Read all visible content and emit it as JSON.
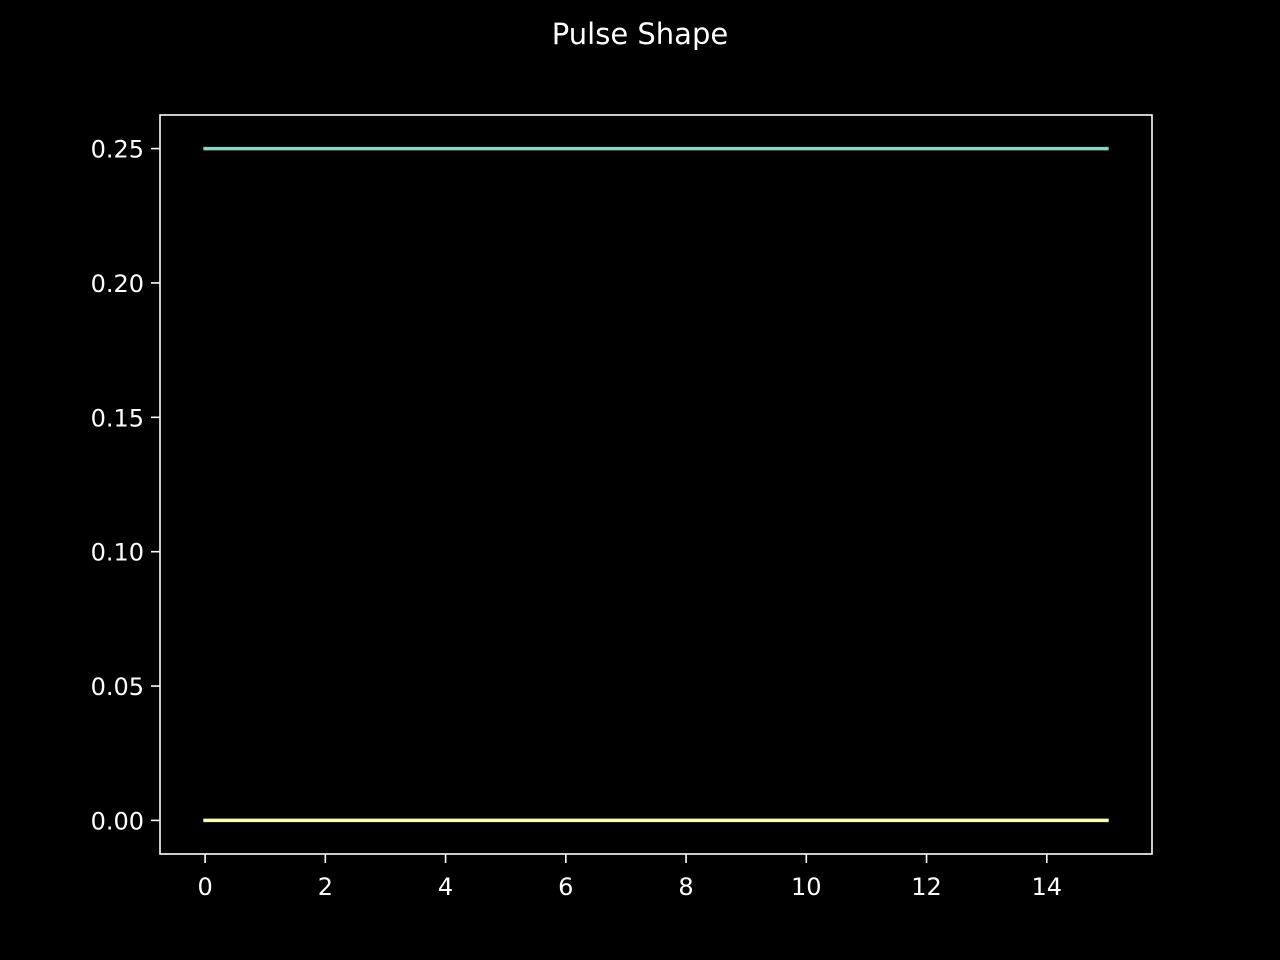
{
  "chart_data": {
    "type": "line",
    "title": "Pulse Shape",
    "xlabel": "",
    "ylabel": "",
    "xlim": [
      -0.75,
      15.75
    ],
    "ylim": [
      -0.0125,
      0.2625
    ],
    "x_ticks": [
      0,
      2,
      4,
      6,
      8,
      10,
      12,
      14
    ],
    "x_tick_labels": [
      "0",
      "2",
      "4",
      "6",
      "8",
      "10",
      "12",
      "14"
    ],
    "y_ticks": [
      0.0,
      0.05,
      0.1,
      0.15,
      0.2,
      0.25
    ],
    "y_tick_labels": [
      "0.00",
      "0.05",
      "0.10",
      "0.15",
      "0.20",
      "0.25"
    ],
    "grid": false,
    "legend": "none",
    "background": "#000000",
    "axis_color": "#ffffff",
    "series": [
      {
        "color": "#8dd3c7",
        "x": [
          0,
          1,
          2,
          3,
          4,
          5,
          6,
          7,
          8,
          9,
          10,
          11,
          12,
          13,
          14,
          15
        ],
        "values": [
          0.25,
          0.25,
          0.25,
          0.25,
          0.25,
          0.25,
          0.25,
          0.25,
          0.25,
          0.25,
          0.25,
          0.25,
          0.25,
          0.25,
          0.25,
          0.25
        ]
      },
      {
        "color": "#feffb3",
        "x": [
          0,
          1,
          2,
          3,
          4,
          5,
          6,
          7,
          8,
          9,
          10,
          11,
          12,
          13,
          14,
          15
        ],
        "values": [
          0,
          0,
          0,
          0,
          0,
          0,
          0,
          0,
          0,
          0,
          0,
          0,
          0,
          0,
          0,
          0
        ]
      }
    ]
  }
}
